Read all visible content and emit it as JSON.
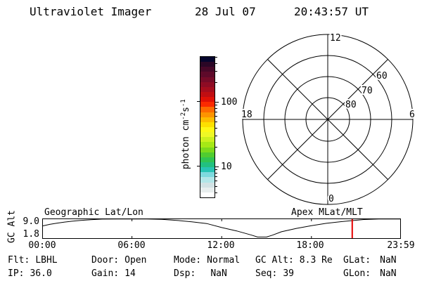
{
  "header": {
    "app_title": "Ultraviolet Imager",
    "date": "28 Jul 07",
    "time": "20:43:57 UT"
  },
  "colorbar": {
    "unit_prefix": "photon cm",
    "unit_sup_1": "-2",
    "unit_mid": "s",
    "unit_sup_2": "-1",
    "major_tick_labels": [
      "100",
      "10"
    ]
  },
  "polar": {
    "mlt_top": "12",
    "mlt_right": "6",
    "mlt_bottom": "0",
    "mlt_left": "18",
    "mlat_ring_60": "60",
    "mlat_ring_70": "70",
    "mlat_ring_80": "80"
  },
  "timeline": {
    "left_title": "Geographic Lat/Lon",
    "right_title": "Apex MLat/MLT",
    "y_axis_label": "GC Alt",
    "y_tick_top": "9.0",
    "y_tick_bottom": "1.8",
    "xticks": [
      "00:00",
      "06:00",
      "12:00",
      "18:00",
      "23:59"
    ]
  },
  "status": {
    "rows": [
      [
        {
          "label": "Flt:",
          "value": "LBHL"
        },
        {
          "label": "Door:",
          "value": "Open"
        },
        {
          "label": "Mode:",
          "value": "Normal"
        },
        {
          "label": "GC Alt:",
          "value": "8.3 Re"
        },
        {
          "label": "GLat:",
          "value": "NaN"
        }
      ],
      [
        {
          "label": "IP:",
          "value": "36.0"
        },
        {
          "label": "Gain:",
          "value": "14"
        },
        {
          "label": "Dsp:",
          "value": "NaN"
        },
        {
          "label": "Seq:",
          "value": "39"
        },
        {
          "label": "GLon:",
          "value": "NaN"
        }
      ]
    ]
  },
  "chart_data": [
    {
      "type": "line",
      "title": "Spacecraft geocentric altitude (Re) vs UT",
      "ylabel": "GC Alt",
      "yticks": [
        {
          "label": "9.0",
          "re": 9.0
        },
        {
          "label": "1.8",
          "re": 1.8
        }
      ],
      "xticks": [
        "00:00",
        "06:00",
        "12:00",
        "18:00",
        "23:59"
      ],
      "x_range_hours": [
        0,
        23.983
      ],
      "x_hours": [
        0,
        0.5,
        1,
        1.5,
        2,
        2.5,
        3,
        4,
        5,
        6,
        7,
        8,
        9,
        10,
        11,
        12,
        13,
        13.5,
        14,
        14.4,
        15,
        15.4,
        16,
        17,
        18,
        19,
        20,
        20.73,
        21.5,
        22.5,
        23.98
      ],
      "y_re": [
        5.7,
        6.5,
        7.1,
        7.6,
        8.0,
        8.35,
        8.6,
        9.0,
        9.2,
        9.3,
        9.3,
        8.9,
        8.4,
        7.7,
        6.9,
        5.0,
        3.4,
        2.4,
        1.4,
        0.5,
        0.5,
        1.4,
        3.0,
        4.6,
        5.9,
        7.0,
        7.8,
        8.3,
        8.8,
        9.15,
        9.3
      ],
      "apogee_re_approx": 9.3,
      "perigee_at_hours_approx": 14.7,
      "current_time_marker": {
        "x_hours": 20.73,
        "color": "#e60000",
        "gc_alt_re": 8.3
      }
    },
    {
      "type": "colorbar",
      "unit": "photon cm-2 s-1",
      "scale": "log",
      "range_approx": [
        3.5,
        500
      ],
      "major_ticks": [
        100,
        10
      ],
      "minor_ticks": [
        200,
        300,
        400,
        500,
        90,
        80,
        70,
        60,
        50,
        40,
        30,
        20,
        9,
        8,
        7,
        6,
        5,
        4
      ],
      "colors_top_to_bottom": [
        "#05052d",
        "#2b0726",
        "#470828",
        "#5e0a2a",
        "#760b28",
        "#8e0c24",
        "#a60d1d",
        "#c00e12",
        "#e01106",
        "#fb2a00",
        "#fd6a00",
        "#fd9400",
        "#fdbc00",
        "#fde000",
        "#fdf816",
        "#eef826",
        "#ccf01e",
        "#a6e816",
        "#7cda1c",
        "#50cc30",
        "#30c452",
        "#22c080",
        "#28c4b4",
        "#7edade",
        "#b2e6e8",
        "#d2e2e4",
        "#e8eeee",
        "#ffffff"
      ]
    },
    {
      "type": "polar-dial",
      "title": "Apex MLat/MLT",
      "mlt_spoke_labels": [
        12,
        18,
        6,
        0
      ],
      "mlat_rings": [
        80,
        70,
        60,
        50
      ],
      "mlat_ring_labels_shown": [
        80,
        70,
        60
      ],
      "grid_on": true
    }
  ]
}
